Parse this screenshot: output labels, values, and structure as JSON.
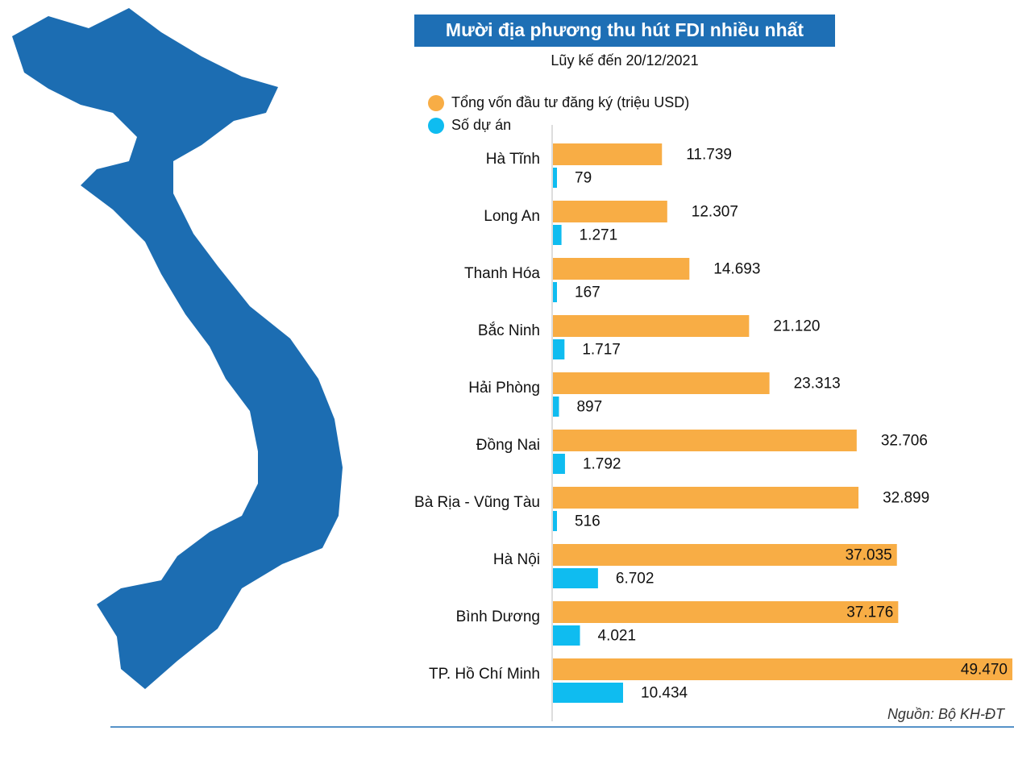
{
  "chart_data": {
    "type": "bar",
    "orientation": "horizontal",
    "title": "Mười địa phương thu hút FDI nhiều nhất",
    "subtitle": "Lũy kế đến 20/12/2021",
    "source": "Nguồn: Bộ KH-ĐT",
    "categories": [
      "Hà Tĩnh",
      "Long An",
      "Thanh Hóa",
      "Bắc Ninh",
      "Hải Phòng",
      "Đồng Nai",
      "Bà Rịa - Vũng Tàu",
      "Hà Nội",
      "Bình Dương",
      "TP. Hồ Chí Minh"
    ],
    "series": [
      {
        "name": "Tổng vốn đầu tư đăng ký (triệu USD)",
        "color": "#f8ad45",
        "values": [
          11739,
          12307,
          14693,
          21120,
          23313,
          32706,
          32899,
          37035,
          37176,
          49470
        ],
        "value_labels": [
          "11.739",
          "12.307",
          "14.693",
          "21.120",
          "23.313",
          "32.706",
          "32.899",
          "37.035",
          "37.176",
          "49.470"
        ]
      },
      {
        "name": "Số dự án",
        "color": "#0fbcf0",
        "values": [
          79,
          1271,
          167,
          1717,
          897,
          1792,
          516,
          6702,
          4021,
          10434
        ],
        "value_labels": [
          "79",
          "1.271",
          "167",
          "1.717",
          "897",
          "1.792",
          "516",
          "6.702",
          "4.021",
          "10.434"
        ]
      }
    ]
  }
}
